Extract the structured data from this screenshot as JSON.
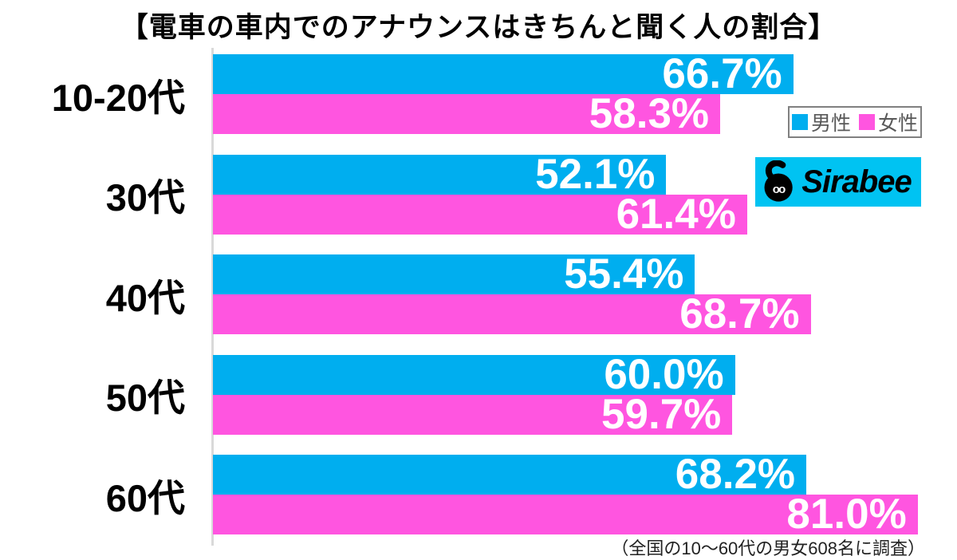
{
  "title": "【電車の車内でのアナウンスはきちんと聞く人の割合】",
  "legend": {
    "male_label": "男性",
    "female_label": "女性"
  },
  "colors": {
    "male": "#00aeef",
    "female": "#ff55e0",
    "logo_background": "#00c3f2",
    "axis": "#d9d9d9"
  },
  "logo": {
    "text": "Sirabee"
  },
  "footnote": "（全国の10〜60代の男女608名に調査）",
  "chart_data": {
    "type": "bar",
    "orientation": "horizontal",
    "title": "【電車の車内でのアナウンスはきちんと聞く人の割合】",
    "categories": [
      "10-20代",
      "30代",
      "40代",
      "50代",
      "60代"
    ],
    "series": [
      {
        "name": "男性",
        "color": "#00aeef",
        "values": [
          66.7,
          52.1,
          55.4,
          60.0,
          68.2
        ],
        "labels": [
          "66.7%",
          "52.1%",
          "55.4%",
          "60.0%",
          "68.2%"
        ]
      },
      {
        "name": "女性",
        "color": "#ff55e0",
        "values": [
          58.3,
          61.4,
          68.7,
          59.7,
          81.0
        ],
        "labels": [
          "58.3%",
          "61.4%",
          "68.7%",
          "59.7%",
          "81.0%"
        ]
      }
    ],
    "value_suffix": "%",
    "xlim": [
      0,
      85.5
    ],
    "grid": false,
    "legend_position": "top-right",
    "annotation": "（全国の10〜60代の男女608名に調査）"
  }
}
